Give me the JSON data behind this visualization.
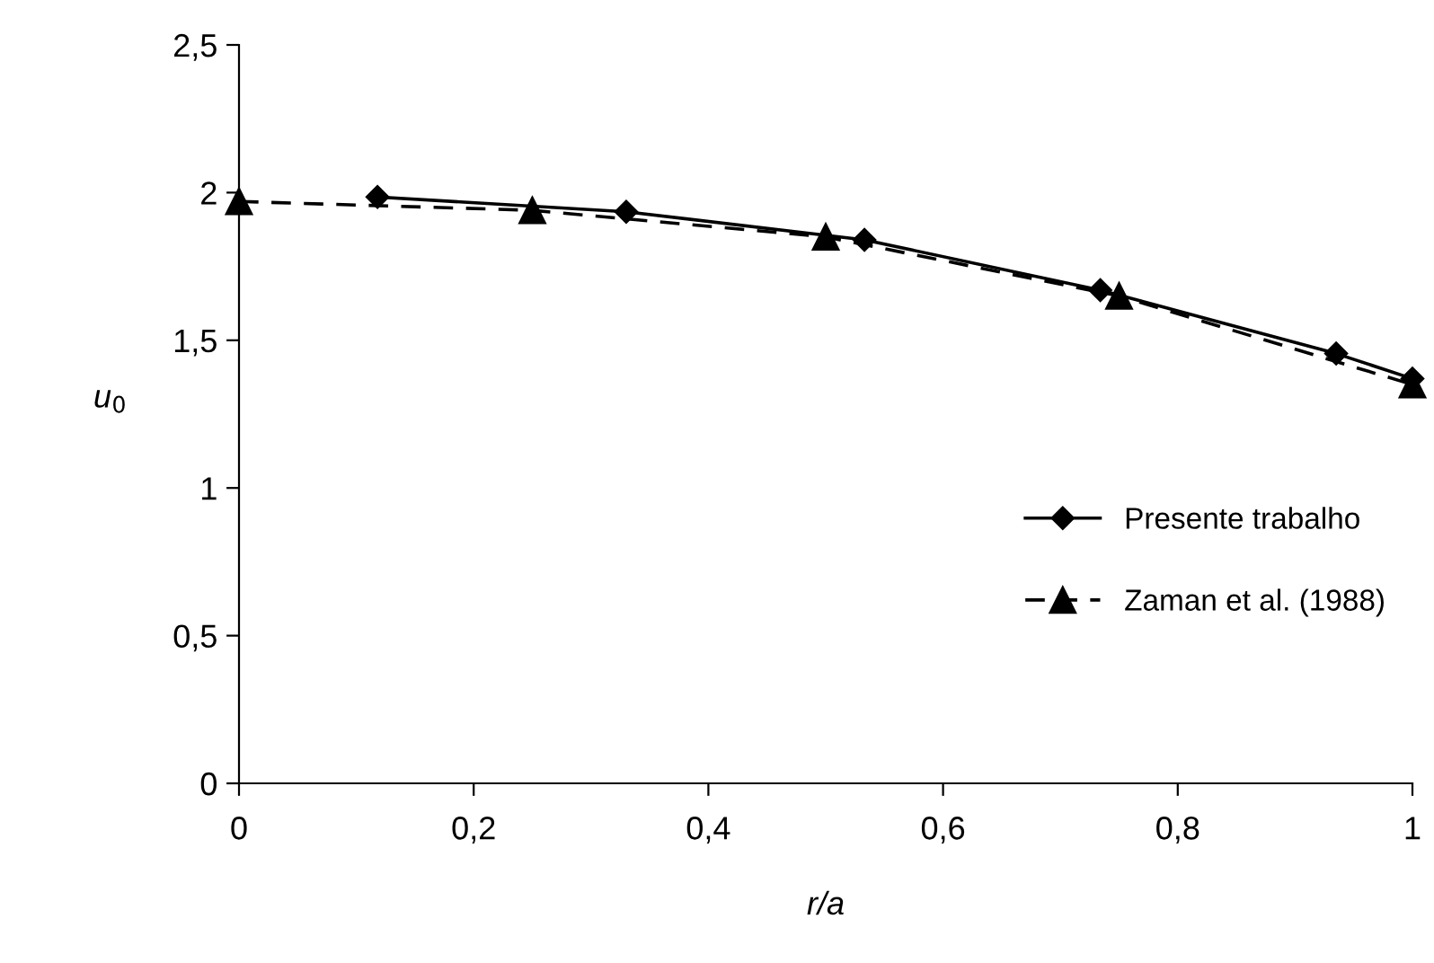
{
  "chart_data": {
    "type": "line",
    "xlabel": "r/a",
    "ylabel": "u$_{0}$",
    "series": [
      {
        "name": "Presente trabalho",
        "color": "#000000",
        "marker": "diamond",
        "line_style": "solid",
        "x": [
          0.118,
          0.33,
          0.533,
          0.734,
          0.935,
          1.0
        ],
        "values": [
          1.985,
          1.935,
          1.84,
          1.67,
          1.455,
          1.37
        ]
      },
      {
        "name": "Zaman et al. (1988)",
        "color": "#000000",
        "marker": "triangle",
        "line_style": "dashed",
        "x": [
          0,
          0.25,
          0.5,
          0.75,
          1.0
        ],
        "values": [
          1.97,
          1.94,
          1.85,
          1.65,
          1.35
        ]
      }
    ],
    "xlim": [
      0,
      1
    ],
    "xticks": [
      {
        "value": 0,
        "label": "0"
      },
      {
        "value": 0.2,
        "label": "0,2"
      },
      {
        "value": 0.4,
        "label": "0,4"
      },
      {
        "value": 0.6,
        "label": "0,6"
      },
      {
        "value": 0.8,
        "label": "0,8"
      },
      {
        "value": 1,
        "label": "1"
      }
    ],
    "ylim": [
      0,
      2.5
    ],
    "yticks": [
      {
        "value": 0,
        "label": "0"
      },
      {
        "value": 0.5,
        "label": "0,5"
      },
      {
        "value": 1,
        "label": "1"
      },
      {
        "value": 1.5,
        "label": "1,5"
      },
      {
        "value": 2,
        "label": "2"
      },
      {
        "value": 2.5,
        "label": "2,5"
      }
    ],
    "legend": "right",
    "grid": false
  }
}
